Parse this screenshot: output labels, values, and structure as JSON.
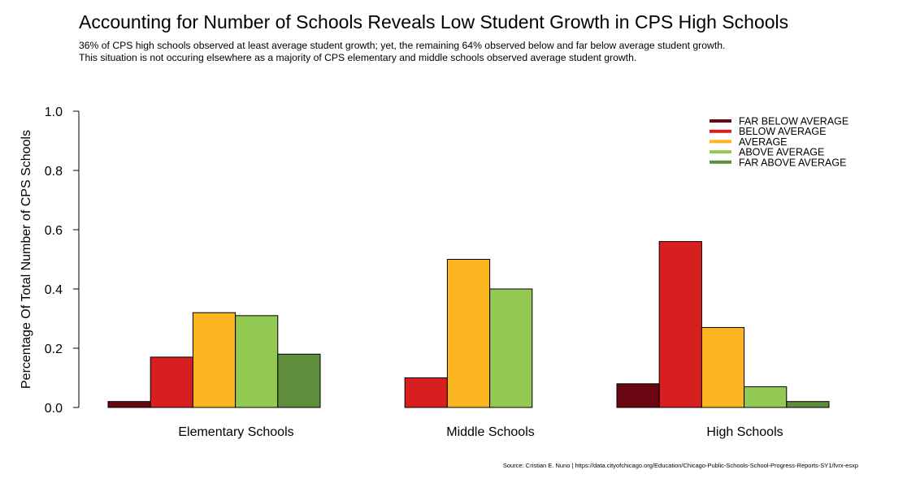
{
  "title": "Accounting for Number of Schools Reveals Low Student Growth in CPS High Schools",
  "subtitle_lines": [
    "36% of CPS high schools observed at least average student growth; yet, the remaining 64% observed below and far below average student growth.",
    "This situation is not occuring elsewhere as a majority of CPS elementary and middle schools observed average student growth."
  ],
  "source": "Source: Cristian E. Nuno | https://data.cityofchicago.org/Education/Chicago-Public-Schools-School-Progress-Reports-SY1/fvrx-esxp",
  "chart_data": {
    "type": "bar",
    "title": "Accounting for Number of Schools Reveals Low Student Growth in CPS High Schools",
    "xlabel": "",
    "ylabel": "Percentage Of Total Number of CPS Schools",
    "ylim": [
      0,
      1
    ],
    "yticks": [
      "0.0",
      "0.2",
      "0.4",
      "0.6",
      "0.8",
      "1.0"
    ],
    "grid": false,
    "legend_position": "top-right",
    "categories": [
      "Elementary Schools",
      "Middle Schools",
      "High Schools"
    ],
    "series": [
      {
        "name": "FAR BELOW AVERAGE",
        "color": "#6b0713",
        "values": [
          0.02,
          0.0,
          0.08
        ]
      },
      {
        "name": "BELOW AVERAGE",
        "color": "#d71f20",
        "values": [
          0.17,
          0.1,
          0.56
        ]
      },
      {
        "name": "AVERAGE",
        "color": "#fbb521",
        "values": [
          0.32,
          0.5,
          0.27
        ]
      },
      {
        "name": "ABOVE AVERAGE",
        "color": "#93c852",
        "values": [
          0.31,
          0.4,
          0.07
        ]
      },
      {
        "name": "FAR ABOVE AVERAGE",
        "color": "#5e8d3b",
        "values": [
          0.18,
          0.0,
          0.02
        ]
      }
    ]
  }
}
